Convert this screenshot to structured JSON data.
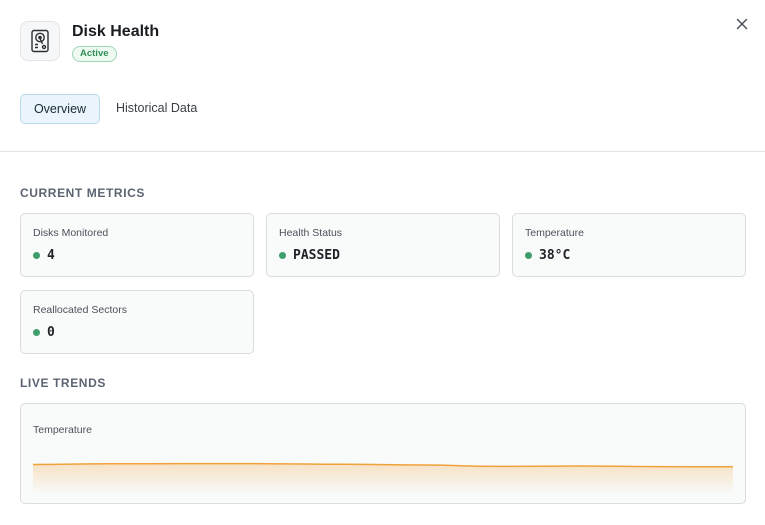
{
  "header": {
    "title": "Disk Health",
    "status_badge": "Active",
    "icon": "hard-drive-icon",
    "close_icon": "close-icon"
  },
  "tabs": [
    {
      "label": "Overview",
      "active": true
    },
    {
      "label": "Historical Data",
      "active": false
    }
  ],
  "sections": {
    "current_metrics": "CURRENT METRICS",
    "live_trends": "LIVE TRENDS"
  },
  "metrics": [
    {
      "label": "Disks Monitored",
      "value": "4",
      "status_color": "#3f9f6c"
    },
    {
      "label": "Health Status",
      "value": "PASSED",
      "status_color": "#3f9f6c"
    },
    {
      "label": "Temperature",
      "value": "38°C",
      "status_color": "#3f9f6c"
    },
    {
      "label": "Reallocated Sectors",
      "value": "0",
      "status_color": "#3f9f6c"
    }
  ],
  "trend": {
    "label": "Temperature",
    "color": "#f0a23a",
    "points": [
      0.55,
      0.62,
      0.64,
      0.63,
      0.58,
      0.5,
      0.36,
      0.4,
      0.34,
      0.32
    ]
  }
}
